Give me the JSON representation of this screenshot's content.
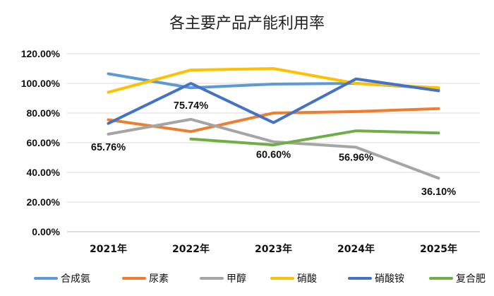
{
  "chart_data": {
    "type": "line",
    "title": "各主要产品产能利用率",
    "categories": [
      "2021年",
      "2022年",
      "2023年",
      "2024年",
      "2025年"
    ],
    "ylim": [
      0,
      1.2
    ],
    "yticks": [
      "0.00%",
      "20.00%",
      "40.00%",
      "60.00%",
      "80.00%",
      "100.00%",
      "120.00%"
    ],
    "grid": "horizontal",
    "legend_position": "bottom",
    "series": [
      {
        "name": "合成氨",
        "color": "#5B9BD5",
        "values": [
          1.065,
          0.97,
          0.995,
          1.0,
          0.965
        ]
      },
      {
        "name": "尿素",
        "color": "#ED7D31",
        "values": [
          0.755,
          0.675,
          0.8,
          0.81,
          0.83
        ]
      },
      {
        "name": "甲醇",
        "color": "#A5A5A5",
        "values": [
          0.6576,
          0.7574,
          0.606,
          0.5696,
          0.361
        ],
        "labels": [
          "65.76%",
          "75.74%",
          "60.60%",
          "56.96%",
          "36.10%"
        ]
      },
      {
        "name": "硝酸",
        "color": "#FFC000",
        "values": [
          0.94,
          1.09,
          1.1,
          1.0,
          0.97
        ]
      },
      {
        "name": "硝酸铵",
        "color": "#4472C4",
        "values": [
          0.73,
          1.0,
          0.735,
          1.03,
          0.95
        ]
      },
      {
        "name": "复合肥",
        "color": "#70AD47",
        "values": [
          null,
          0.625,
          0.585,
          0.68,
          0.665
        ]
      }
    ]
  }
}
